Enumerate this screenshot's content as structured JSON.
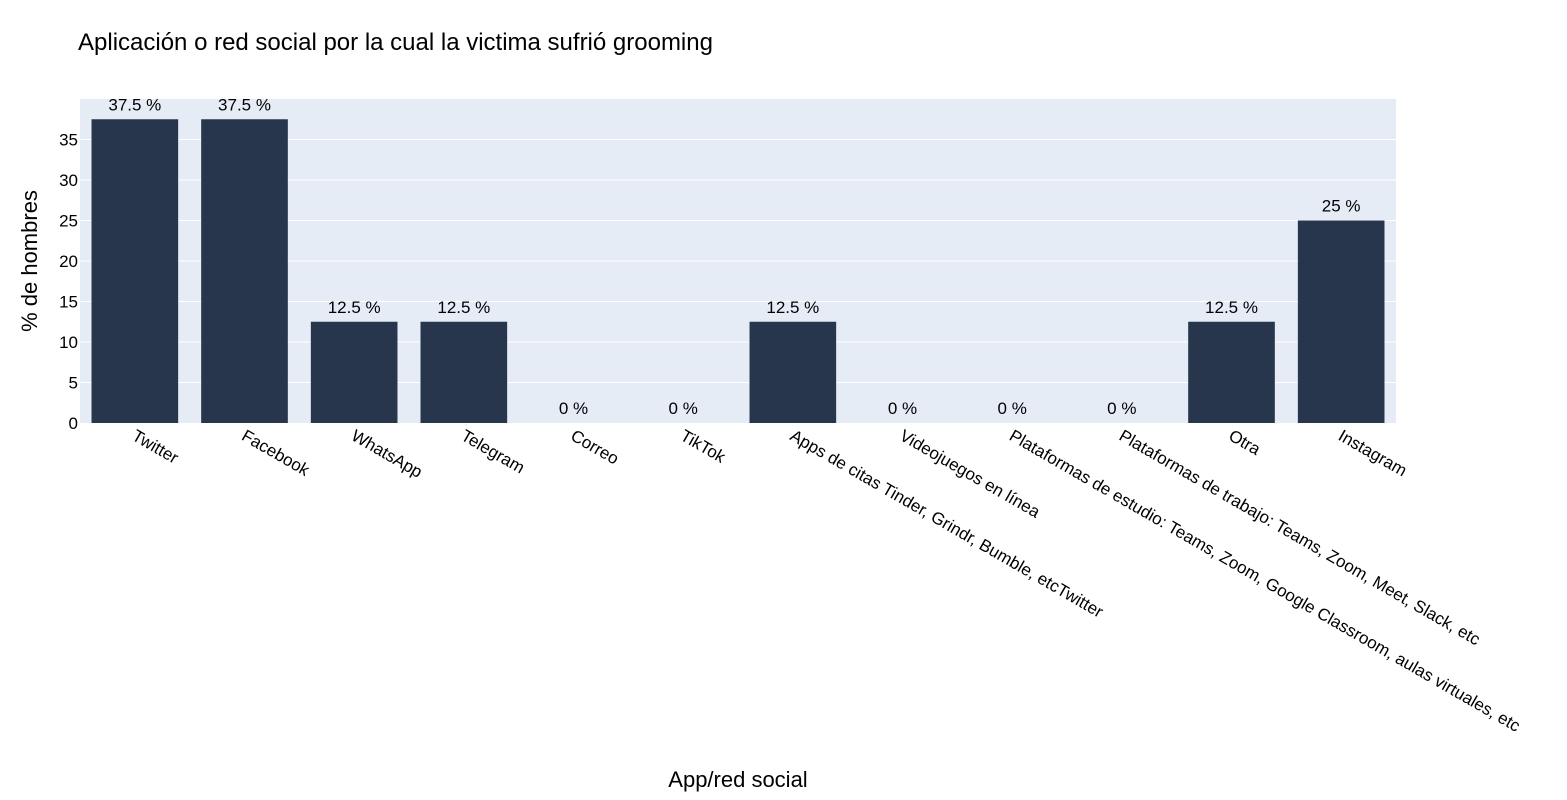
{
  "chart_data": {
    "type": "bar",
    "title": "Aplicación o red social por la cual la victima sufrió grooming",
    "xlabel": "App/red social",
    "ylabel": "% de hombres",
    "categories": [
      "Twitter",
      "Facebook",
      "WhatsApp",
      "Telegram",
      "Correo",
      "TikTok",
      "Apps de citas Tinder, Grindr, Bumble, etcTwitter",
      "Videojuegos en línea",
      "Plataformas de estudio: Teams, Zoom, Google Classroom, aulas virtuales, etc",
      "Plataformas de trabajo: Teams, Zoom, Meet, Slack, etc",
      "Otra",
      "Instagram"
    ],
    "values": [
      37.5,
      37.5,
      12.5,
      12.5,
      0,
      0,
      12.5,
      0,
      0,
      0,
      12.5,
      25
    ],
    "data_labels": [
      "37.5 %",
      "37.5 %",
      "12.5 %",
      "12.5 %",
      "0 %",
      "0 %",
      "12.5 %",
      "0 %",
      "0 %",
      "0 %",
      "12.5 %",
      "25 %"
    ],
    "yticks": [
      0,
      5,
      10,
      15,
      20,
      25,
      30,
      35
    ],
    "ylim": [
      0,
      37.5
    ],
    "grid": true,
    "colors": {
      "bar": "#27364c",
      "plot_bg": "#e5ecf6",
      "grid": "#ffffff"
    }
  }
}
